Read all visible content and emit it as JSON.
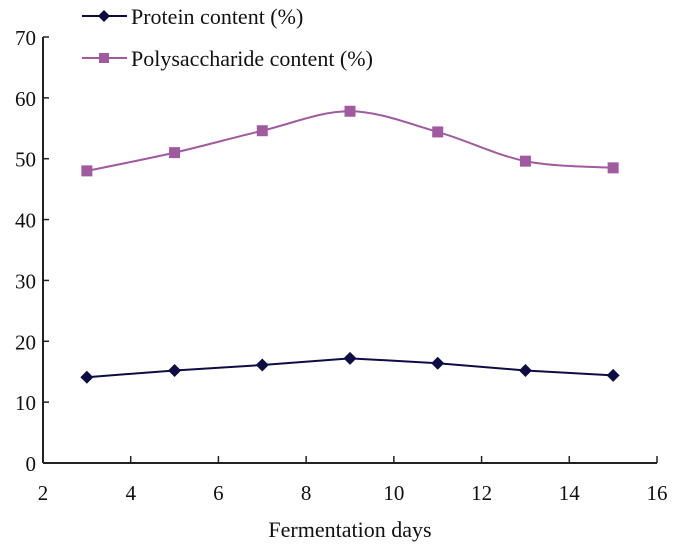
{
  "chart_data": {
    "type": "line",
    "title": "",
    "xlabel": "Fermentation days",
    "ylabel": "",
    "xlim": [
      2,
      16
    ],
    "ylim": [
      0,
      70
    ],
    "xticks": [
      2,
      4,
      6,
      8,
      10,
      12,
      14,
      16
    ],
    "yticks": [
      0,
      10,
      20,
      30,
      40,
      50,
      60,
      70
    ],
    "xtick_labels": [
      "2",
      "4",
      "6",
      "8",
      "10",
      "12",
      "14",
      "16"
    ],
    "ytick_labels": [
      "0",
      "10",
      "20",
      "30",
      "40",
      "50",
      "60",
      "70"
    ],
    "grid": false,
    "legend_position": "top",
    "x": [
      3,
      5,
      7,
      9,
      11,
      13,
      15
    ],
    "series": [
      {
        "name": "Protein content (%)",
        "marker": "diamond",
        "color": "#0D0D45",
        "smooth": false,
        "values": [
          14.1,
          15.2,
          16.1,
          17.2,
          16.4,
          15.2,
          14.4
        ]
      },
      {
        "name": "Polysaccharide content (%)",
        "marker": "square",
        "color": "#A05A9F",
        "smooth": true,
        "values": [
          48.0,
          51.0,
          54.6,
          57.8,
          54.4,
          49.6,
          48.5
        ]
      }
    ]
  }
}
